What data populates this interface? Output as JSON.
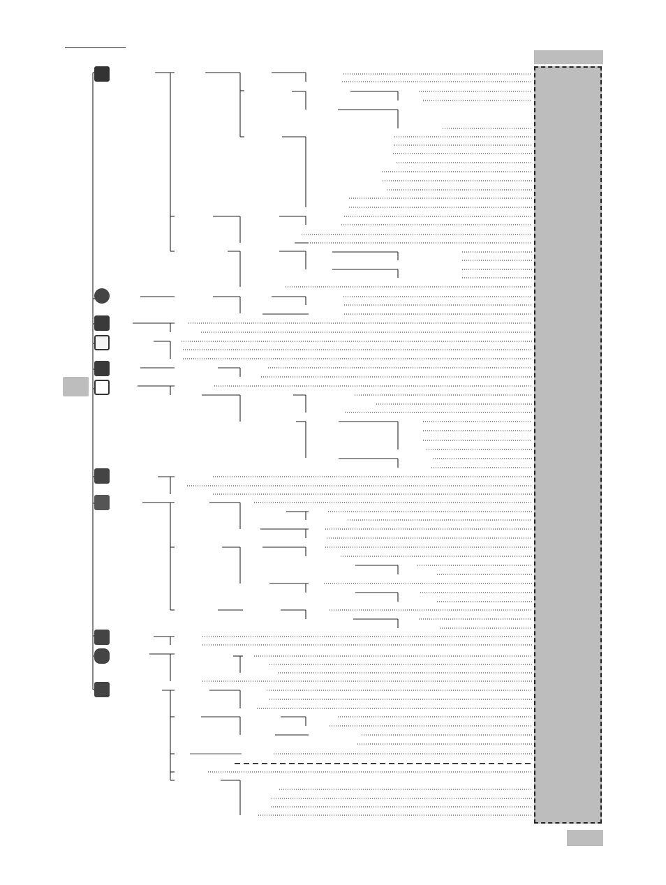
{
  "page": {
    "colors": {
      "line": "#222222",
      "panel": "#bdbdbd",
      "background": "#ffffff"
    },
    "right_panel": {
      "top_label": "",
      "note": ""
    },
    "page_number": ""
  },
  "menu_icons": [
    {
      "name": "climate-icon"
    },
    {
      "name": "wheel-icon"
    },
    {
      "name": "seat-icon"
    },
    {
      "name": "grid-layout-icon"
    },
    {
      "name": "display-icon"
    },
    {
      "name": "graph-icon"
    },
    {
      "name": "bar-chart-icon"
    },
    {
      "name": "box-icon"
    },
    {
      "name": "light-icon"
    },
    {
      "name": "lock-icon"
    },
    {
      "name": "tools-icon"
    }
  ]
}
